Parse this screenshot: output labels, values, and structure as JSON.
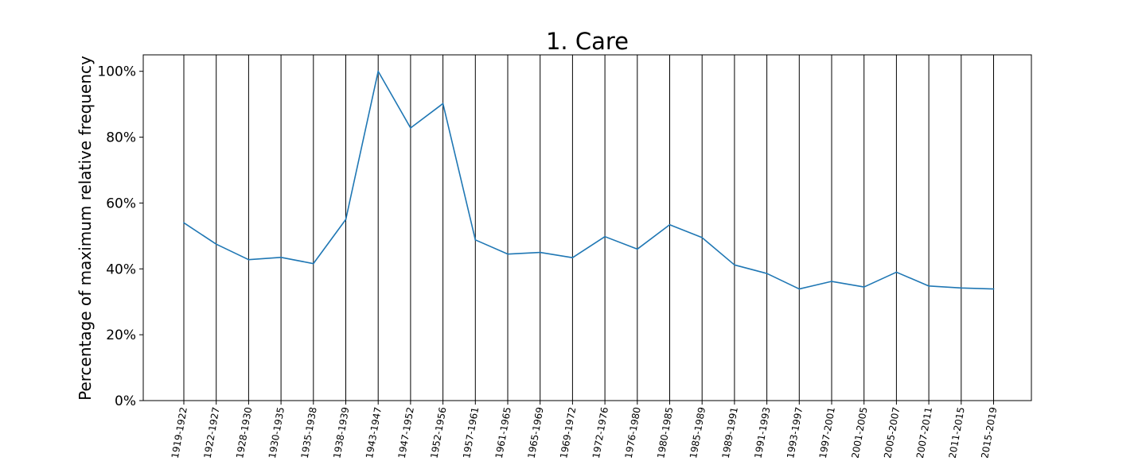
{
  "chart_data": {
    "type": "line",
    "title": "1. Care",
    "xlabel": "",
    "ylabel": "Percentage of maximum relative frequency",
    "ylim": [
      0,
      105
    ],
    "yticks": [
      0,
      20,
      40,
      60,
      80,
      100
    ],
    "ytick_labels": [
      "0%",
      "20%",
      "40%",
      "60%",
      "80%",
      "100%"
    ],
    "vertical_gridlines": true,
    "horizontal_gridlines": false,
    "line_color": "#1f77b4",
    "categories": [
      "1919-1922",
      "1922-1927",
      "1928-1930",
      "1930-1935",
      "1935-1938",
      "1938-1939",
      "1943-1947",
      "1947-1952",
      "1952-1956",
      "1957-1961",
      "1961-1965",
      "1965-1969",
      "1969-1972",
      "1972-1976",
      "1976-1980",
      "1980-1985",
      "1985-1989",
      "1989-1991",
      "1991-1993",
      "1993-1997",
      "1997-2001",
      "2001-2005",
      "2005-2007",
      "2007-2011",
      "2011-2015",
      "2015-2019"
    ],
    "series": [
      {
        "values": [
          54.0,
          47.5,
          42.8,
          43.5,
          41.6,
          55.0,
          100.0,
          82.8,
          90.2,
          48.8,
          44.5,
          45.0,
          43.4,
          49.8,
          46.0,
          53.4,
          49.5,
          41.2,
          38.6,
          33.9,
          36.2,
          34.5,
          39.0,
          34.8,
          34.2,
          33.9
        ]
      }
    ]
  }
}
